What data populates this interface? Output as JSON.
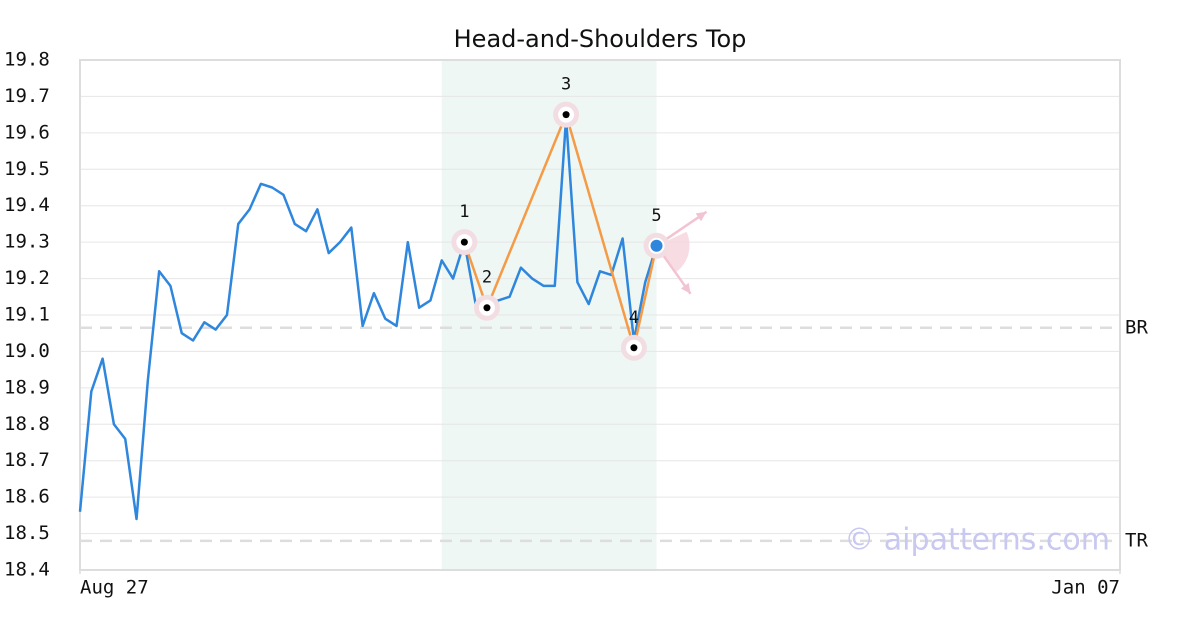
{
  "chart_data": {
    "type": "line",
    "title": "Head-and-Shoulders Top",
    "x": [
      0,
      1,
      2,
      3,
      4,
      5,
      6,
      7,
      8,
      9,
      10,
      11,
      12,
      13,
      14,
      15,
      16,
      17,
      18,
      19,
      20,
      21,
      22,
      23,
      24,
      25,
      26,
      27,
      28,
      29,
      30,
      31,
      32,
      33,
      34,
      35,
      36,
      37,
      38,
      39,
      40,
      41,
      42,
      43,
      44,
      45,
      46,
      47,
      48,
      49,
      50,
      51
    ],
    "series": [
      {
        "color": "#2f86dd",
        "values": [
          18.56,
          18.89,
          18.98,
          18.8,
          18.76,
          18.54,
          18.92,
          19.22,
          19.18,
          19.05,
          19.03,
          19.08,
          19.06,
          19.1,
          19.35,
          19.39,
          19.46,
          19.45,
          19.43,
          19.35,
          19.33,
          19.39,
          19.27,
          19.3,
          19.34,
          19.07,
          19.16,
          19.09,
          19.07,
          19.3,
          19.12,
          19.14,
          19.25,
          19.2,
          19.3,
          19.13,
          19.12,
          19.14,
          19.15,
          19.23,
          19.2,
          19.18,
          19.18,
          19.64,
          19.19,
          19.13,
          19.22,
          19.21,
          19.31,
          19.03,
          19.19,
          19.29
        ]
      }
    ],
    "xlim": [
      0,
      92
    ],
    "xticks": [
      {
        "value": 0,
        "label": "Aug 27"
      },
      {
        "value": 92,
        "label": "Jan 07"
      }
    ],
    "ylim": [
      18.4,
      19.8
    ],
    "yticks": [
      18.4,
      18.5,
      18.6,
      18.7,
      18.8,
      18.9,
      {
        "value": 19,
        "label": "19.0"
      },
      19.1,
      19.2,
      19.3,
      19.4,
      19.5,
      19.6,
      19.7,
      19.8
    ],
    "grid": true,
    "pattern": {
      "color": "#f59a46",
      "region": [
        32,
        51
      ],
      "points": [
        {
          "label": "1",
          "x": 34,
          "y": 19.3
        },
        {
          "label": "2",
          "x": 36,
          "y": 19.12
        },
        {
          "label": "3",
          "x": 43,
          "y": 19.65
        },
        {
          "label": "4",
          "x": 49,
          "y": 19.01
        },
        {
          "label": "5",
          "x": 51,
          "y": 19.29
        }
      ]
    },
    "levels": [
      {
        "label": "BR",
        "value": 19.065
      },
      {
        "label": "TR",
        "value": 18.48
      }
    ],
    "watermark": "© aipatterns.com"
  }
}
